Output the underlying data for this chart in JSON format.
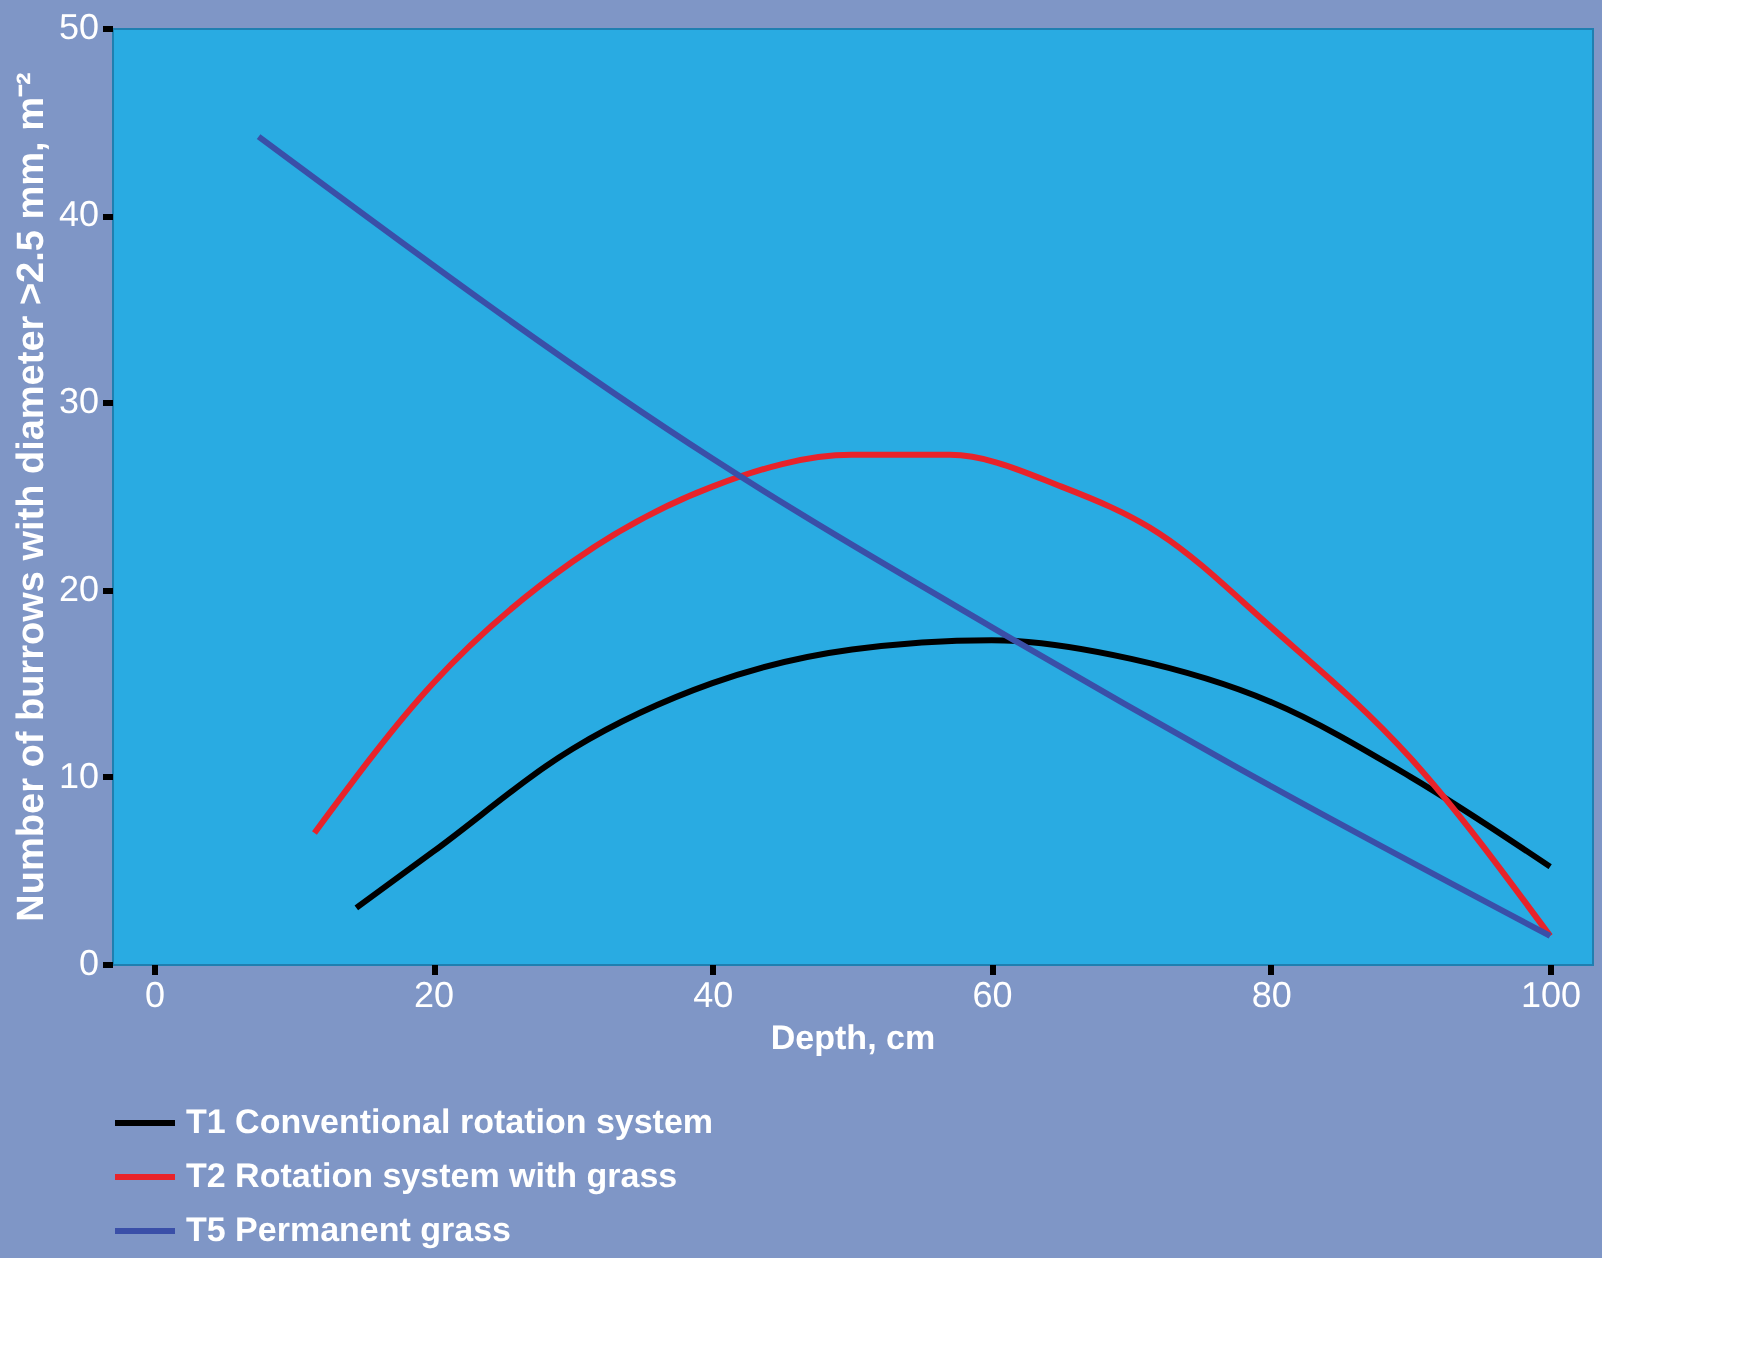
{
  "chart_data": {
    "type": "line",
    "xlabel": "Depth, cm",
    "ylabel": "Number of burrows with diameter >2.5 mm, m⁻²",
    "xlim": [
      -3,
      103
    ],
    "ylim": [
      0,
      50
    ],
    "xticks": [
      0,
      20,
      40,
      60,
      80,
      100
    ],
    "yticks": [
      0,
      10,
      20,
      30,
      40,
      50
    ],
    "grid": false,
    "legend": "bottom",
    "marker": "none",
    "line_style": "solid",
    "series": [
      {
        "name": "T1 Conventional rotation system",
        "color": "#000000",
        "x": [
          14.5,
          20,
          30,
          40,
          50,
          60,
          70,
          80,
          90,
          100
        ],
        "values": [
          3,
          6,
          11.5,
          15,
          16.8,
          17.3,
          16.3,
          14,
          10,
          5.2
        ]
      },
      {
        "name": "T2 Rotation system with grass",
        "color": "#e8232a",
        "x": [
          11.5,
          20,
          30,
          40,
          50,
          57,
          65,
          72,
          80,
          90,
          100
        ],
        "values": [
          7,
          15,
          21.5,
          25.5,
          27.2,
          27.2,
          25.5,
          23,
          18,
          11,
          1.5
        ]
      },
      {
        "name": "T5 Permanent grass",
        "color": "#3a4fa8",
        "x": [
          7.5,
          40,
          60,
          80,
          100
        ],
        "values": [
          44.2,
          27,
          18,
          9.5,
          1.5
        ]
      }
    ]
  }
}
